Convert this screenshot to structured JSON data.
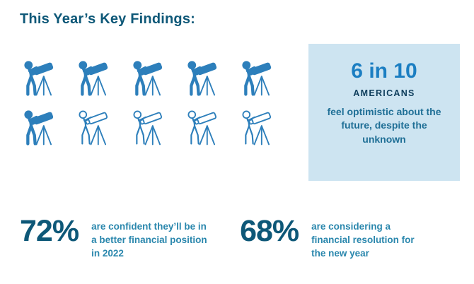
{
  "title": "This Year’s Key Findings:",
  "pictogram": {
    "icon": "person-with-telescope",
    "total": 10,
    "filled": 6,
    "columns": 5
  },
  "highlight_box": {
    "headline": "6 in 10",
    "subject": "AMERICANS",
    "description": "feel optimistic about the future, despite the unknown"
  },
  "stats": [
    {
      "value": "72%",
      "description": "are confident they’ll be in a better financial position in 2022"
    },
    {
      "value": "68%",
      "description": "are considering a financial resolution for the new year"
    }
  ],
  "colors": {
    "title": "#0e5878",
    "icon": "#2d7fbb",
    "box_bg": "#cde4f1",
    "headline": "#1b7ec2",
    "subject": "#0f3e5c",
    "box_text": "#1f6f96",
    "stat_value": "#0e5878",
    "stat_text": "#2a87ad"
  },
  "chart_data": {
    "type": "pictogram",
    "title": "This Year’s Key Findings:",
    "items": [
      {
        "label": "Americans feel optimistic about the future, despite the unknown",
        "value": 6,
        "of_total": 10
      },
      {
        "label": "are confident they’ll be in a better financial position in 2022",
        "value": 72,
        "unit": "%"
      },
      {
        "label": "are considering a financial resolution for the new year",
        "value": 68,
        "unit": "%"
      }
    ],
    "legend": "filled icon = optimistic, outlined icon = not",
    "layout": "10-person icon array (5 per row), stat callouts below"
  }
}
